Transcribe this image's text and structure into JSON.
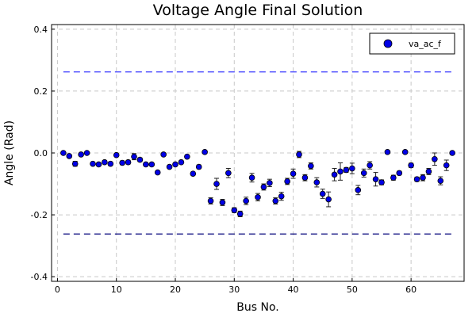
{
  "chart_data": {
    "type": "scatter",
    "title": "Voltage Angle Final Solution",
    "xlabel": "Bus No.",
    "ylabel": "Angle (Rad)",
    "xlim": [
      -1,
      69
    ],
    "ylim": [
      -0.415,
      0.415
    ],
    "xticks": [
      0,
      10,
      20,
      30,
      40,
      50,
      60
    ],
    "yticks": [
      -0.4,
      -0.2,
      0.0,
      0.2,
      0.4
    ],
    "xtick_labels": [
      "0",
      "10",
      "20",
      "30",
      "40",
      "50",
      "60"
    ],
    "ytick_labels": [
      "-0.4",
      "-0.2",
      "0.0",
      "0.2",
      "0.4"
    ],
    "grid": true,
    "legend_position": "top-right",
    "colors": {
      "marker": "#0000e6",
      "upper_limit": "#3d3dff",
      "lower_limit": "#00007a"
    },
    "series": [
      {
        "name": "va_ac_f",
        "x": [
          1,
          2,
          3,
          4,
          5,
          6,
          7,
          8,
          9,
          10,
          11,
          12,
          13,
          14,
          15,
          16,
          17,
          18,
          19,
          20,
          21,
          22,
          23,
          24,
          25,
          26,
          27,
          28,
          29,
          30,
          31,
          32,
          33,
          34,
          35,
          36,
          37,
          38,
          39,
          40,
          41,
          42,
          43,
          44,
          45,
          46,
          47,
          48,
          49,
          50,
          51,
          52,
          53,
          54,
          55,
          56,
          57,
          58,
          59,
          60,
          61,
          62,
          63,
          64,
          65,
          66,
          67
        ],
        "y": [
          0.0,
          -0.01,
          -0.035,
          -0.005,
          0.0,
          -0.035,
          -0.037,
          -0.03,
          -0.035,
          -0.007,
          -0.032,
          -0.03,
          -0.012,
          -0.022,
          -0.037,
          -0.037,
          -0.063,
          -0.005,
          -0.045,
          -0.037,
          -0.03,
          -0.012,
          -0.067,
          -0.045,
          0.003,
          -0.155,
          -0.1,
          -0.16,
          -0.065,
          -0.185,
          -0.197,
          -0.155,
          -0.08,
          -0.143,
          -0.11,
          -0.097,
          -0.155,
          -0.14,
          -0.092,
          -0.067,
          -0.005,
          -0.08,
          -0.042,
          -0.095,
          -0.132,
          -0.15,
          -0.07,
          -0.06,
          -0.055,
          -0.05,
          -0.12,
          -0.065,
          -0.04,
          -0.085,
          -0.095,
          0.003,
          -0.08,
          -0.065,
          0.003,
          -0.04,
          -0.085,
          -0.08,
          -0.06,
          -0.02,
          -0.09,
          -0.04,
          0.0
        ],
        "err": [
          0.003,
          0.005,
          0.008,
          0.003,
          0.003,
          0.004,
          0.004,
          0.005,
          0.006,
          0.004,
          0.006,
          0.006,
          0.01,
          0.006,
          0.005,
          0.004,
          0.004,
          0.003,
          0.004,
          0.005,
          0.004,
          0.005,
          0.005,
          0.006,
          0.004,
          0.01,
          0.018,
          0.01,
          0.015,
          0.008,
          0.009,
          0.012,
          0.014,
          0.012,
          0.01,
          0.012,
          0.01,
          0.013,
          0.01,
          0.015,
          0.01,
          0.01,
          0.01,
          0.015,
          0.015,
          0.024,
          0.02,
          0.028,
          0.008,
          0.017,
          0.015,
          0.013,
          0.012,
          0.022,
          0.008,
          0.003,
          0.008,
          0.006,
          0.004,
          0.007,
          0.007,
          0.01,
          0.01,
          0.02,
          0.013,
          0.017,
          0.004
        ]
      }
    ],
    "reference_lines": [
      {
        "y": 0.262,
        "style": "dashed",
        "color": "#3d3dff"
      },
      {
        "y": -0.262,
        "style": "dashed",
        "color": "#00007a"
      }
    ]
  }
}
